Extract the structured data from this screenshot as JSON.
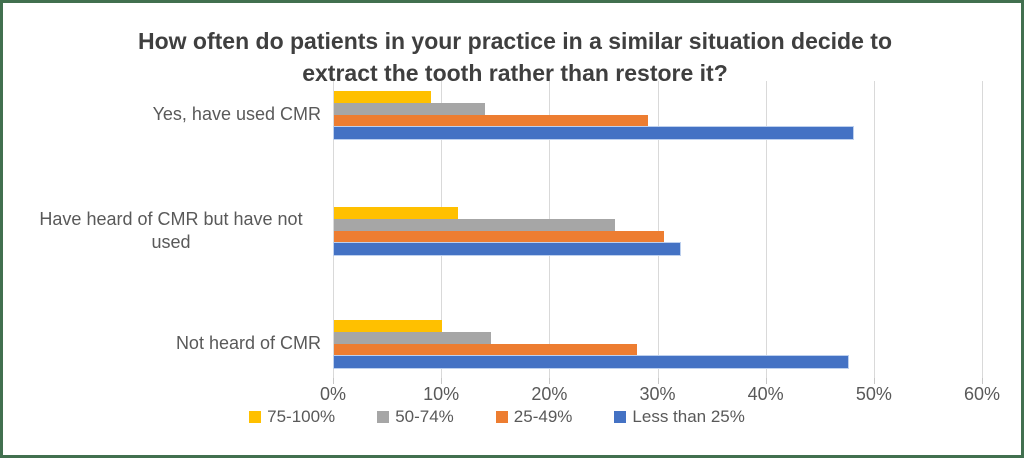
{
  "colors": {
    "frame_border": "#41704F",
    "title_text": "#3F3F3F",
    "axis_text": "#595959",
    "gridline": "#D9D9D9",
    "tickmark": "#C7C7C7"
  },
  "chart_data": {
    "type": "bar",
    "orientation": "horizontal",
    "title": "How often do patients in your practice in a similar situation decide to extract the tooth rather than restore it?",
    "categories": [
      "Yes, have used CMR",
      "Have heard of CMR but have not used",
      "Not heard of CMR"
    ],
    "series": [
      {
        "name": "75-100%",
        "color": "#FFC000",
        "values": [
          9,
          11.5,
          10
        ]
      },
      {
        "name": "50-74%",
        "color": "#A6A6A6",
        "values": [
          14,
          26,
          14.5
        ]
      },
      {
        "name": "25-49%",
        "color": "#ED7D31",
        "values": [
          29,
          30.5,
          28
        ]
      },
      {
        "name": "Less than 25%",
        "color": "#4472C4",
        "outline": "#BDD0EE",
        "values": [
          48,
          32,
          47.5
        ]
      }
    ],
    "x_axis": {
      "min": 0,
      "max": 60,
      "ticks": [
        "0%",
        "10%",
        "20%",
        "30%",
        "40%",
        "50%",
        "60%"
      ]
    },
    "legend_position": "bottom",
    "grid": true
  }
}
